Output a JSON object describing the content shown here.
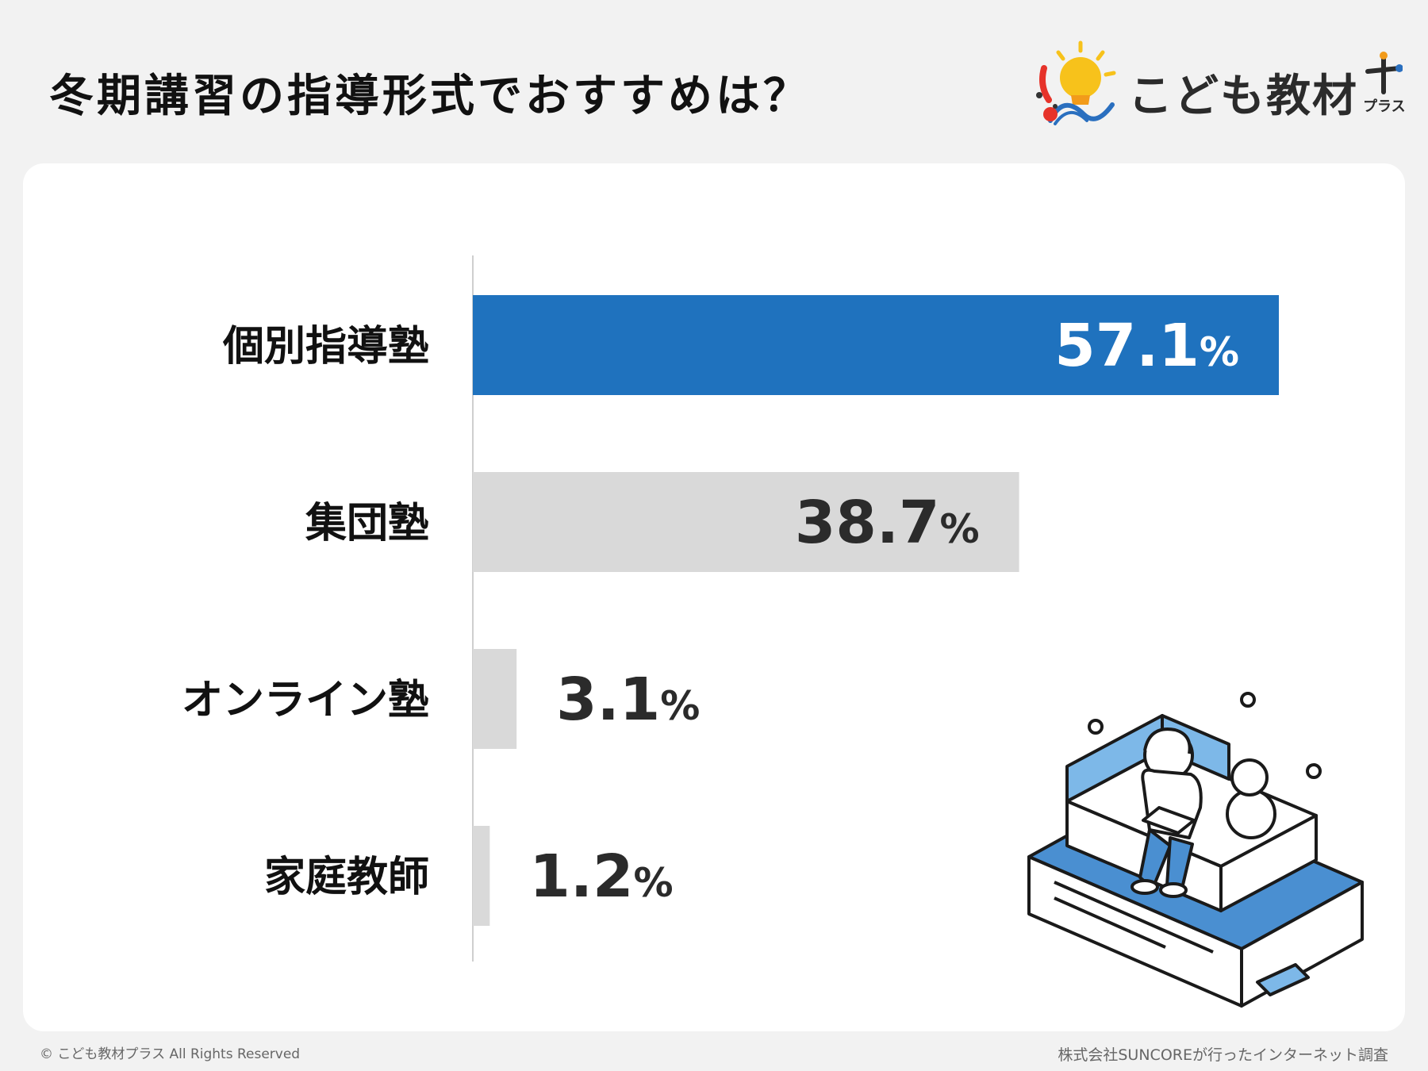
{
  "page": {
    "title": "冬期講習の指導形式でおすすめは？"
  },
  "logo": {
    "name": "こども教材",
    "suffix": "プラス"
  },
  "chart_data": {
    "type": "bar",
    "orientation": "horizontal",
    "categories": [
      "個別指導塾",
      "集団塾",
      "オンライン塾",
      "家庭教師"
    ],
    "values": [
      57.1,
      38.7,
      3.1,
      1.2
    ],
    "value_labels": [
      "57.1",
      "38.7",
      "3.1",
      "1.2"
    ],
    "unit": "%",
    "xlim": [
      0,
      60
    ],
    "grid": false,
    "legend": "none",
    "highlight_color": "#1f72be",
    "bar_color": "#d9d9d9"
  },
  "footer": {
    "copyright": "© こども教材プラス All Rights Reserved",
    "source": "株式会社SUNCOREが行ったインターネット調査"
  },
  "illustration": {
    "icon": "child-reading-on-bed-illustration"
  }
}
